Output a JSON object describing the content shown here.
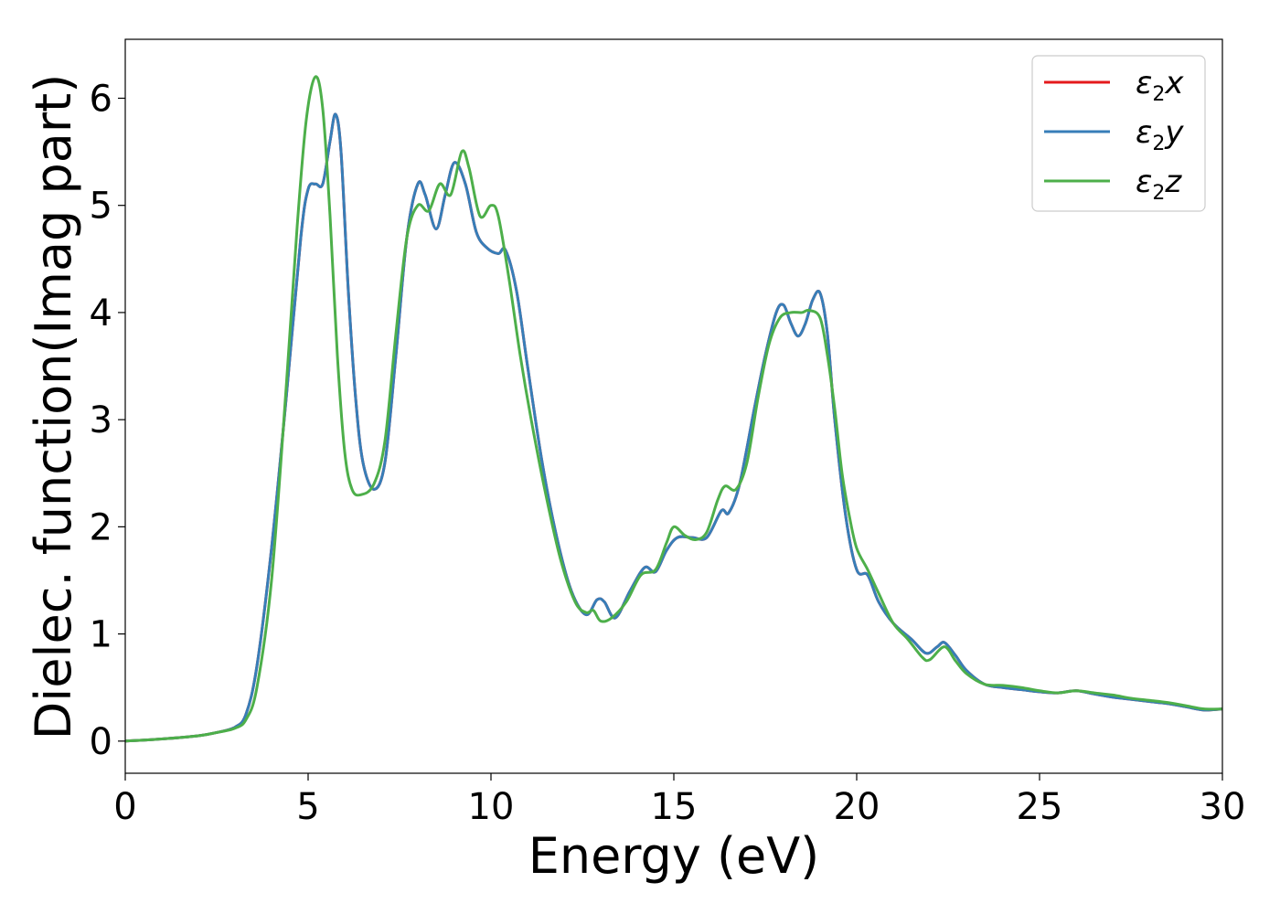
{
  "chart_data": {
    "type": "line",
    "xlabel": "Energy (eV)",
    "ylabel": "Dielec. function(Imag part)",
    "xlim": [
      0,
      30
    ],
    "ylim": [
      -0.3,
      6.55
    ],
    "xticks": [
      0,
      5,
      10,
      15,
      20,
      25,
      30
    ],
    "yticks": [
      0,
      1,
      2,
      3,
      4,
      5,
      6
    ],
    "grid": false,
    "legend_position": "top-right",
    "colors": {
      "x": "#e41a1c",
      "y": "#377eb8",
      "z": "#4daf4a"
    },
    "legend": [
      {
        "key": "x",
        "prefix": "ε",
        "sub": "2",
        "suffix": "x"
      },
      {
        "key": "y",
        "prefix": "ε",
        "sub": "2",
        "suffix": "y"
      },
      {
        "key": "z",
        "prefix": "ε",
        "sub": "2",
        "suffix": "z"
      }
    ],
    "series": [
      {
        "name": "ε2x",
        "key": "x",
        "x": [
          0,
          1,
          2,
          2.5,
          3,
          3.3,
          3.6,
          4.0,
          4.4,
          4.8,
          5.0,
          5.2,
          5.4,
          5.6,
          5.75,
          5.9,
          6.1,
          6.3,
          6.5,
          6.8,
          7.1,
          7.4,
          7.7,
          8.0,
          8.2,
          8.5,
          8.75,
          9.0,
          9.3,
          9.6,
          9.9,
          10.2,
          10.4,
          10.7,
          11.0,
          11.4,
          11.8,
          12.2,
          12.6,
          12.9,
          13.1,
          13.4,
          13.8,
          14.2,
          14.5,
          14.8,
          15.1,
          15.5,
          15.9,
          16.3,
          16.5,
          16.8,
          17.2,
          17.5,
          17.8,
          18.0,
          18.2,
          18.4,
          18.6,
          18.8,
          19.0,
          19.2,
          19.4,
          19.7,
          20.0,
          20.3,
          20.6,
          21.0,
          21.5,
          21.9,
          22.2,
          22.4,
          22.7,
          23.0,
          23.5,
          24.0,
          24.5,
          25.0,
          25.5,
          26.0,
          26.5,
          27.0,
          27.5,
          28.0,
          28.5,
          29.0,
          29.5,
          30.0
        ],
        "values": [
          0,
          0.02,
          0.05,
          0.08,
          0.13,
          0.25,
          0.7,
          1.8,
          3.2,
          4.7,
          5.15,
          5.2,
          5.2,
          5.6,
          5.85,
          5.5,
          4.2,
          3.2,
          2.6,
          2.35,
          2.6,
          3.6,
          4.7,
          5.2,
          5.1,
          4.78,
          5.1,
          5.4,
          5.2,
          4.75,
          4.6,
          4.55,
          4.58,
          4.2,
          3.5,
          2.6,
          1.9,
          1.4,
          1.18,
          1.32,
          1.3,
          1.15,
          1.4,
          1.62,
          1.58,
          1.78,
          1.9,
          1.9,
          1.9,
          2.15,
          2.13,
          2.4,
          3.1,
          3.6,
          4.0,
          4.07,
          3.9,
          3.78,
          3.9,
          4.12,
          4.18,
          3.8,
          3.0,
          2.1,
          1.6,
          1.55,
          1.3,
          1.1,
          0.95,
          0.82,
          0.88,
          0.92,
          0.8,
          0.66,
          0.53,
          0.5,
          0.48,
          0.46,
          0.45,
          0.47,
          0.44,
          0.41,
          0.39,
          0.37,
          0.35,
          0.32,
          0.29,
          0.3
        ]
      },
      {
        "name": "ε2y",
        "key": "y",
        "x": [
          0,
          1,
          2,
          2.5,
          3,
          3.3,
          3.6,
          4.0,
          4.4,
          4.8,
          5.0,
          5.2,
          5.4,
          5.6,
          5.75,
          5.9,
          6.1,
          6.3,
          6.5,
          6.8,
          7.1,
          7.4,
          7.7,
          8.0,
          8.2,
          8.5,
          8.75,
          9.0,
          9.3,
          9.6,
          9.9,
          10.2,
          10.4,
          10.7,
          11.0,
          11.4,
          11.8,
          12.2,
          12.6,
          12.9,
          13.1,
          13.4,
          13.8,
          14.2,
          14.5,
          14.8,
          15.1,
          15.5,
          15.9,
          16.3,
          16.5,
          16.8,
          17.2,
          17.5,
          17.8,
          18.0,
          18.2,
          18.4,
          18.6,
          18.8,
          19.0,
          19.2,
          19.4,
          19.7,
          20.0,
          20.3,
          20.6,
          21.0,
          21.5,
          21.9,
          22.2,
          22.4,
          22.7,
          23.0,
          23.5,
          24.0,
          24.5,
          25.0,
          25.5,
          26.0,
          26.5,
          27.0,
          27.5,
          28.0,
          28.5,
          29.0,
          29.5,
          30.0
        ],
        "values": [
          0,
          0.02,
          0.05,
          0.08,
          0.13,
          0.25,
          0.7,
          1.8,
          3.2,
          4.7,
          5.15,
          5.2,
          5.2,
          5.6,
          5.85,
          5.5,
          4.2,
          3.2,
          2.6,
          2.35,
          2.6,
          3.6,
          4.7,
          5.2,
          5.1,
          4.78,
          5.1,
          5.4,
          5.2,
          4.75,
          4.6,
          4.55,
          4.58,
          4.2,
          3.5,
          2.6,
          1.9,
          1.4,
          1.18,
          1.32,
          1.3,
          1.15,
          1.4,
          1.62,
          1.58,
          1.78,
          1.9,
          1.9,
          1.9,
          2.15,
          2.13,
          2.4,
          3.1,
          3.6,
          4.0,
          4.07,
          3.9,
          3.78,
          3.9,
          4.12,
          4.18,
          3.8,
          3.0,
          2.1,
          1.6,
          1.55,
          1.3,
          1.1,
          0.95,
          0.82,
          0.88,
          0.92,
          0.8,
          0.66,
          0.53,
          0.5,
          0.48,
          0.46,
          0.45,
          0.47,
          0.44,
          0.41,
          0.39,
          0.37,
          0.35,
          0.32,
          0.29,
          0.3
        ]
      },
      {
        "name": "ε2z",
        "key": "z",
        "x": [
          0,
          1,
          2,
          2.5,
          3,
          3.3,
          3.6,
          4.0,
          4.4,
          4.7,
          4.95,
          5.2,
          5.4,
          5.6,
          5.8,
          6.0,
          6.2,
          6.45,
          6.8,
          7.1,
          7.4,
          7.7,
          8.0,
          8.3,
          8.6,
          8.9,
          9.2,
          9.4,
          9.7,
          10.0,
          10.2,
          10.5,
          10.8,
          11.1,
          11.5,
          11.9,
          12.3,
          12.6,
          12.8,
          13.0,
          13.3,
          13.7,
          14.1,
          14.5,
          14.8,
          15.0,
          15.3,
          15.6,
          15.9,
          16.2,
          16.4,
          16.7,
          17.0,
          17.3,
          17.6,
          17.9,
          18.2,
          18.5,
          18.7,
          19.0,
          19.2,
          19.4,
          19.6,
          19.8,
          20.0,
          20.3,
          20.6,
          21.0,
          21.4,
          21.8,
          22.0,
          22.4,
          22.7,
          23.0,
          23.5,
          24.0,
          24.5,
          25.0,
          25.5,
          26.0,
          26.5,
          27.0,
          27.5,
          28.0,
          28.5,
          29.0,
          29.5,
          30.0
        ],
        "values": [
          0,
          0.02,
          0.05,
          0.08,
          0.12,
          0.2,
          0.5,
          1.5,
          3.3,
          4.8,
          5.8,
          6.2,
          5.9,
          4.9,
          3.6,
          2.7,
          2.35,
          2.3,
          2.4,
          2.8,
          3.8,
          4.7,
          5.0,
          4.95,
          5.2,
          5.1,
          5.5,
          5.35,
          4.9,
          5.0,
          4.9,
          4.3,
          3.6,
          3.0,
          2.3,
          1.7,
          1.3,
          1.2,
          1.22,
          1.12,
          1.15,
          1.3,
          1.55,
          1.6,
          1.85,
          2.0,
          1.92,
          1.88,
          1.95,
          2.25,
          2.38,
          2.35,
          2.6,
          3.2,
          3.7,
          3.95,
          4.0,
          4.0,
          4.02,
          3.95,
          3.6,
          3.1,
          2.5,
          2.1,
          1.8,
          1.6,
          1.38,
          1.1,
          0.95,
          0.78,
          0.76,
          0.88,
          0.75,
          0.63,
          0.53,
          0.52,
          0.5,
          0.47,
          0.45,
          0.47,
          0.45,
          0.43,
          0.4,
          0.38,
          0.36,
          0.33,
          0.3,
          0.3
        ]
      }
    ]
  }
}
